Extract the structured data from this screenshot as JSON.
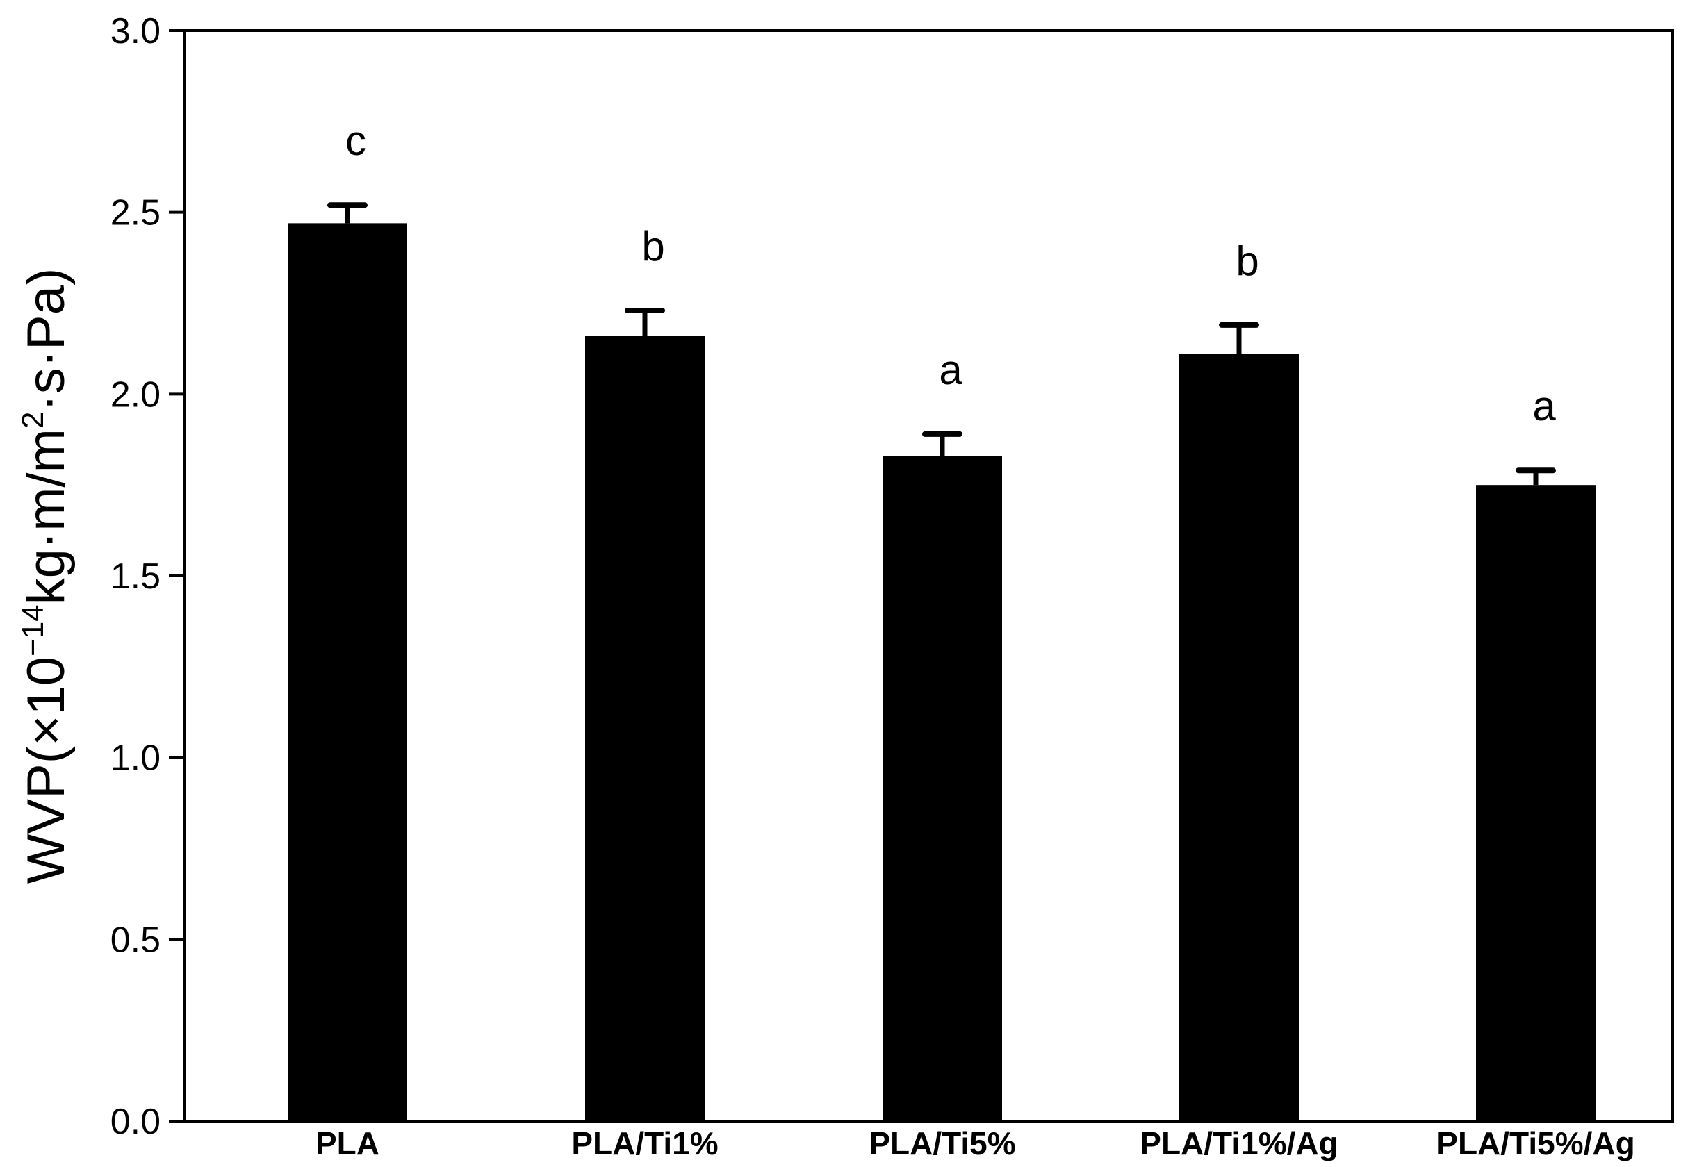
{
  "chart_data": {
    "type": "bar",
    "categories": [
      "PLA",
      "PLA/Ti1%",
      "PLA/Ti5%",
      "PLA/Ti1%/Ag",
      "PLA/Ti5%/Ag"
    ],
    "values": [
      2.47,
      2.16,
      1.83,
      2.11,
      1.75
    ],
    "errors": [
      0.05,
      0.07,
      0.06,
      0.08,
      0.04
    ],
    "significance": [
      "c",
      "b",
      "a",
      "b",
      "a"
    ],
    "ylabel": {
      "main": "WVP(×10",
      "exp1": "−14",
      "mid": "kg·m/m",
      "exp2": "2",
      "end": "·s·Pa)"
    },
    "ylim": [
      0.0,
      3.0
    ],
    "yticks": [
      "0.0",
      "0.5",
      "1.0",
      "1.5",
      "2.0",
      "2.5",
      "3.0"
    ],
    "ytick_values": [
      0.0,
      0.5,
      1.0,
      1.5,
      2.0,
      2.5,
      3.0
    ],
    "bar_color": "#000000",
    "grid": false,
    "legend": "none"
  }
}
